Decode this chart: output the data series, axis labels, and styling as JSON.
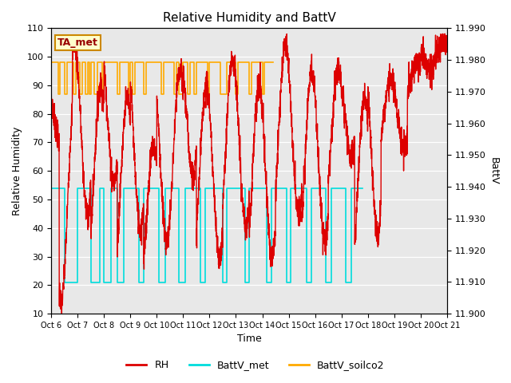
{
  "title": "Relative Humidity and BattV",
  "xlabel": "Time",
  "ylabel_left": "Relative Humidity",
  "ylabel_right": "BattV",
  "ylim_left": [
    10,
    110
  ],
  "ylim_right": [
    11.9,
    11.99
  ],
  "yticks_left": [
    10,
    20,
    30,
    40,
    50,
    60,
    70,
    80,
    90,
    100,
    110
  ],
  "yticks_right": [
    11.9,
    11.91,
    11.92,
    11.93,
    11.94,
    11.95,
    11.96,
    11.97,
    11.98,
    11.99
  ],
  "fig_bg_color": "#ffffff",
  "plot_bg_color": "#e8e8e8",
  "annotation_text": "TA_met",
  "annotation_bg": "#ffffcc",
  "annotation_text_color": "#990000",
  "annotation_border": "#cc8800",
  "rh_color": "#dd0000",
  "battv_met_color": "#00dddd",
  "battv_soilco2_color": "#ffaa00",
  "legend_entries": [
    "RH",
    "BattV_met",
    "BattV_soilco2"
  ],
  "x_tick_labels": [
    "Oct 6",
    "Oct 7",
    "Oct 8",
    "Oct 9",
    "Oct 10",
    "Oct 11",
    "Oct 12",
    "Oct 13",
    "Oct 14",
    "Oct 15",
    "Oct 16",
    "Oct 17",
    "Oct 18",
    "Oct 19",
    "Oct 20",
    "Oct 21"
  ],
  "battv_met_high": 54.0,
  "battv_met_low": 21.0,
  "battv_soil_high": 98.0,
  "battv_soil_low": 87.0,
  "total_hours": 360
}
